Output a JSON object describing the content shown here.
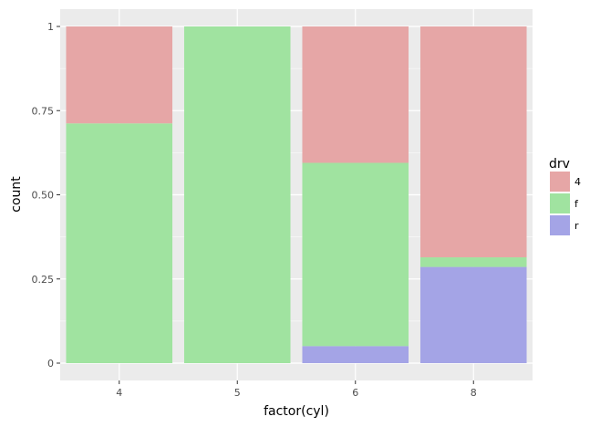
{
  "chart_data": {
    "type": "bar",
    "stacked": true,
    "position": "fill",
    "categories": [
      "4",
      "5",
      "6",
      "8"
    ],
    "series": [
      {
        "name": "r",
        "color": "#a4a4e6",
        "values": [
          0.0,
          0.0,
          0.0506,
          0.2857
        ]
      },
      {
        "name": "f",
        "color": "#a0e3a0",
        "values": [
          0.7121,
          1.0,
          0.5443,
          0.0286
        ]
      },
      {
        "name": "4",
        "color": "#e6a6a6",
        "values": [
          0.2879,
          0.0,
          0.4051,
          0.6857
        ]
      }
    ],
    "xlabel": "factor(cyl)",
    "ylabel": "count",
    "ylim": [
      0,
      1
    ],
    "yticks": [
      0,
      0.25,
      0.5,
      0.75,
      1
    ],
    "ytick_labels": [
      "0",
      "0.25",
      "0.50",
      "0.75",
      "1"
    ],
    "grid": true,
    "legend": {
      "title": "drv",
      "placement": "right",
      "entries": [
        "4",
        "f",
        "r"
      ]
    },
    "colors": {
      "panel_background": "#ebebeb",
      "grid": "#ffffff"
    }
  }
}
